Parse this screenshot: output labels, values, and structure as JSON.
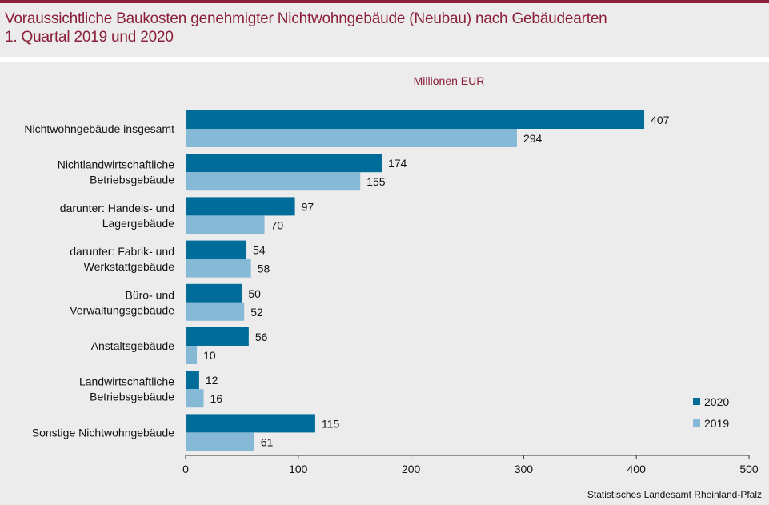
{
  "title_line1": "Voraussichtliche Baukosten genehmigter Nichtwohngebäude (Neubau) nach Gebäudearten",
  "title_line2": "1. Quartal 2019 und 2020",
  "source": "Statistisches Landesamt Rheinland-Pfalz",
  "colors": {
    "s2020": "#006c99",
    "s2019": "#86b9d6",
    "title": "#8c1f3a"
  },
  "chart_data": {
    "type": "bar",
    "orientation": "horizontal",
    "unit_label": "Millionen EUR",
    "categories": [
      [
        "Nichtwohngebäude insgesamt"
      ],
      [
        "Nichtlandwirtschaftliche",
        "Betriebsgebäude"
      ],
      [
        "darunter: Handels- und",
        "Lagergebäude"
      ],
      [
        "darunter: Fabrik- und",
        "Werkstattgebäude"
      ],
      [
        "Büro- und",
        "Verwaltungsgebäude"
      ],
      [
        "Anstaltsgebäude"
      ],
      [
        "Landwirtschaftliche",
        "Betriebsgebäude"
      ],
      [
        "Sonstige Nichtwohngebäude"
      ]
    ],
    "series": [
      {
        "name": "2020",
        "values": [
          407,
          174,
          97,
          54,
          50,
          56,
          12,
          115
        ]
      },
      {
        "name": "2019",
        "values": [
          294,
          155,
          70,
          58,
          52,
          10,
          16,
          61
        ]
      }
    ],
    "xlim": [
      0,
      500
    ],
    "xticks": [
      0,
      100,
      200,
      300,
      400,
      500
    ],
    "legend_position": "bottom-right",
    "grid": false
  }
}
